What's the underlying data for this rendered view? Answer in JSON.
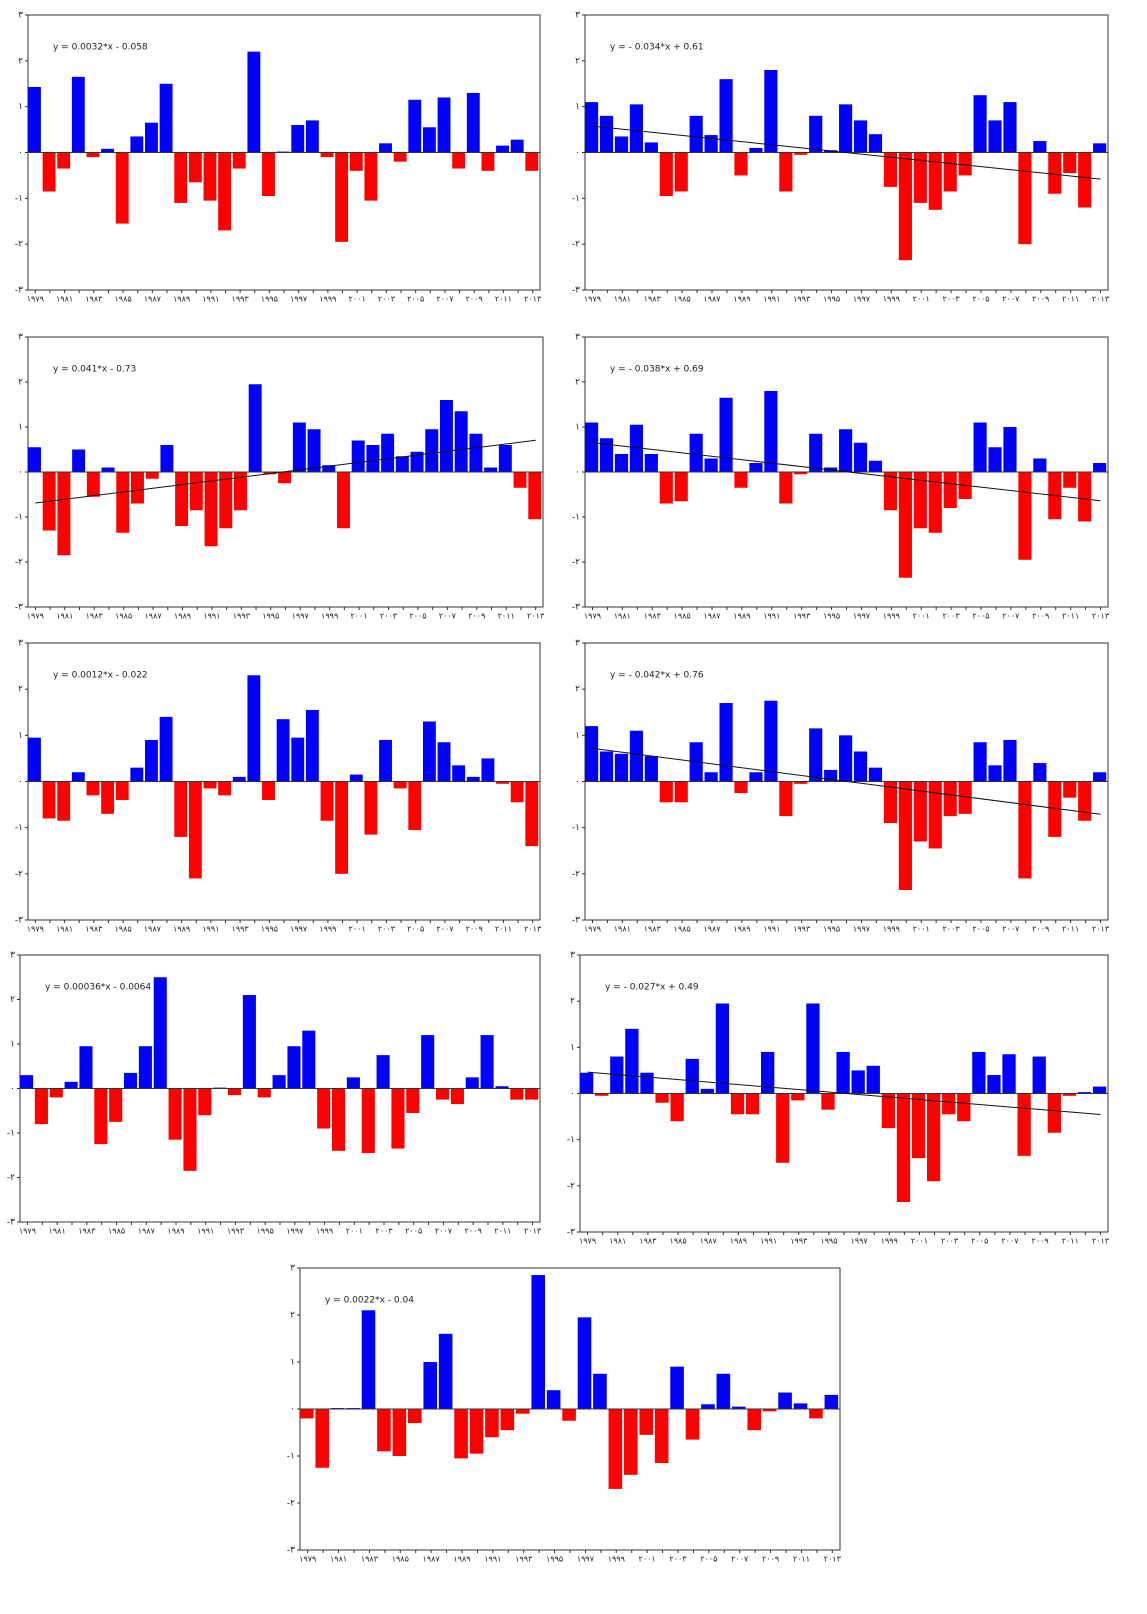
{
  "chart_data": [
    {
      "type": "bar",
      "equation": "y = 0.0032*x - 0.058",
      "trend": {
        "slope": 0.0032,
        "intercept": -0.058,
        "visible": false
      },
      "positive_color": "#0000ff",
      "negative_color": "#ff0000",
      "categories": [
        "۱۹۷۹",
        null,
        "۱۹۸۱",
        null,
        "۱۹۸۳",
        null,
        "۱۹۸۵",
        null,
        "۱۹۸۷",
        null,
        "۱۹۸۹",
        null,
        "۱۹۹۱",
        null,
        "۱۹۹۳",
        null,
        "۱۹۹۵",
        null,
        "۱۹۹۷",
        null,
        "۱۹۹۹",
        null,
        "۲۰۰۱",
        null,
        "۲۰۰۳",
        null,
        "۲۰۰۵",
        null,
        "۲۰۰۷",
        null,
        "۲۰۰۹",
        null,
        "۲۰۱۱",
        null,
        "۲۰۱۳"
      ],
      "values": [
        1.43,
        -0.85,
        -0.35,
        1.65,
        -0.1,
        0.08,
        -1.55,
        0.35,
        0.65,
        1.5,
        -1.1,
        -0.65,
        -1.05,
        -1.7,
        -0.35,
        2.2,
        -0.95,
        0.02,
        0.6,
        0.7,
        -0.1,
        -1.95,
        -0.4,
        -1.05,
        0.2,
        -0.2,
        1.15,
        0.55,
        1.2,
        -0.35,
        1.3,
        -0.4,
        0.15,
        0.28,
        -0.4
      ],
      "ylim": [
        -3,
        3
      ],
      "yticks": [
        {
          "value": -3,
          "label": "-۳"
        },
        {
          "value": -2,
          "label": "-۲"
        },
        {
          "value": -1,
          "label": "-۱"
        },
        {
          "value": 0,
          "label": "۰"
        },
        {
          "value": 1,
          "label": "۱"
        },
        {
          "value": 2,
          "label": "۲"
        },
        {
          "value": 3,
          "label": "۳"
        }
      ]
    },
    {
      "type": "bar",
      "equation": "y = - 0.034*x + 0.61",
      "trend": {
        "slope": -0.034,
        "intercept": 0.61,
        "visible": true
      },
      "positive_color": "#0000ff",
      "negative_color": "#ff0000",
      "categories": [
        "۱۹۷۹",
        null,
        "۱۹۸۱",
        null,
        "۱۹۸۳",
        null,
        "۱۹۸۵",
        null,
        "۱۹۸۷",
        null,
        "۱۹۸۹",
        null,
        "۱۹۹۱",
        null,
        "۱۹۹۳",
        null,
        "۱۹۹۵",
        null,
        "۱۹۹۷",
        null,
        "۱۹۹۹",
        null,
        "۲۰۰۱",
        null,
        "۲۰۰۳",
        null,
        "۲۰۰۵",
        null,
        "۲۰۰۷",
        null,
        "۲۰۰۹",
        null,
        "۲۰۱۱",
        null,
        "۲۰۱۳"
      ],
      "values": [
        1.1,
        0.8,
        0.35,
        1.05,
        0.22,
        -0.95,
        -0.85,
        0.8,
        0.38,
        1.6,
        -0.5,
        0.1,
        1.8,
        -0.85,
        -0.05,
        0.8,
        0.05,
        1.05,
        0.7,
        0.4,
        -0.75,
        -2.35,
        -1.1,
        -1.25,
        -0.85,
        -0.5,
        1.25,
        0.7,
        1.1,
        -2.0,
        0.25,
        -0.9,
        -0.45,
        -1.2,
        0.2
      ],
      "ylim": [
        -3,
        3
      ],
      "yticks": [
        {
          "value": -3,
          "label": "-۳"
        },
        {
          "value": -2,
          "label": "-۲"
        },
        {
          "value": -1,
          "label": "-۱"
        },
        {
          "value": 0,
          "label": "۰"
        },
        {
          "value": 1,
          "label": "۱"
        },
        {
          "value": 2,
          "label": "۲"
        },
        {
          "value": 3,
          "label": "۳"
        }
      ]
    },
    {
      "type": "bar",
      "equation": "y = 0.041*x - 0.73",
      "trend": {
        "slope": 0.041,
        "intercept": -0.73,
        "visible": true
      },
      "positive_color": "#0000ff",
      "negative_color": "#ff0000",
      "categories": [
        "۱۹۷۹",
        null,
        "۱۹۸۱",
        null,
        "۱۹۸۳",
        null,
        "۱۹۸۵",
        null,
        "۱۹۸۷",
        null,
        "۱۹۸۹",
        null,
        "۱۹۹۱",
        null,
        "۱۹۹۳",
        null,
        "۱۹۹۵",
        null,
        "۱۹۹۷",
        null,
        "۱۹۹۹",
        null,
        "۲۰۰۱",
        null,
        "۲۰۰۳",
        null,
        "۲۰۰۵",
        null,
        "۲۰۰۷",
        null,
        "۲۰۰۹",
        null,
        "۲۰۱۱",
        null,
        "۲۰۱۳"
      ],
      "values": [
        0.55,
        -1.3,
        -1.85,
        0.5,
        -0.55,
        0.1,
        -1.35,
        -0.7,
        -0.15,
        0.6,
        -1.2,
        -0.85,
        -1.65,
        -1.25,
        -0.85,
        1.95,
        -0.05,
        -0.25,
        1.1,
        0.95,
        0.15,
        -1.25,
        0.7,
        0.6,
        0.85,
        0.35,
        0.45,
        0.95,
        1.6,
        1.35,
        0.85,
        0.1,
        0.6,
        -0.35,
        -1.05
      ],
      "ylim": [
        -3,
        3
      ],
      "yticks": [
        {
          "value": -3,
          "label": "-۳"
        },
        {
          "value": -2,
          "label": "-۲"
        },
        {
          "value": -1,
          "label": "-۱"
        },
        {
          "value": 0,
          "label": "۰"
        },
        {
          "value": 1,
          "label": "۱"
        },
        {
          "value": 2,
          "label": "۲"
        },
        {
          "value": 3,
          "label": "۳"
        }
      ]
    },
    {
      "type": "bar",
      "equation": "y = - 0.038*x + 0.69",
      "trend": {
        "slope": -0.038,
        "intercept": 0.69,
        "visible": true
      },
      "positive_color": "#0000ff",
      "negative_color": "#ff0000",
      "categories": [
        "۱۹۷۹",
        null,
        "۱۹۸۱",
        null,
        "۱۹۸۳",
        null,
        "۱۹۸۵",
        null,
        "۱۹۸۷",
        null,
        "۱۹۸۹",
        null,
        "۱۹۹۱",
        null,
        "۱۹۹۳",
        null,
        "۱۹۹۵",
        null,
        "۱۹۹۷",
        null,
        "۱۹۹۹",
        null,
        "۲۰۰۱",
        null,
        "۲۰۰۳",
        null,
        "۲۰۰۵",
        null,
        "۲۰۰۷",
        null,
        "۲۰۰۹",
        null,
        "۲۰۱۱",
        null,
        "۲۰۱۳"
      ],
      "values": [
        1.1,
        0.75,
        0.4,
        1.05,
        0.4,
        -0.7,
        -0.65,
        0.85,
        0.3,
        1.65,
        -0.35,
        0.2,
        1.8,
        -0.7,
        -0.05,
        0.85,
        0.1,
        0.95,
        0.65,
        0.25,
        -0.85,
        -2.35,
        -1.25,
        -1.35,
        -0.8,
        -0.6,
        1.1,
        0.55,
        1.0,
        -1.95,
        0.3,
        -1.05,
        -0.35,
        -1.1,
        0.2
      ],
      "ylim": [
        -3,
        3
      ],
      "yticks": [
        {
          "value": -3,
          "label": "-۳"
        },
        {
          "value": -2,
          "label": "-۲"
        },
        {
          "value": -1,
          "label": "-۱"
        },
        {
          "value": 0,
          "label": "۰"
        },
        {
          "value": 1,
          "label": "۱"
        },
        {
          "value": 2,
          "label": "۲"
        },
        {
          "value": 3,
          "label": "۳"
        }
      ]
    },
    {
      "type": "bar",
      "equation": "y = 0.0012*x - 0.022",
      "trend": {
        "slope": 0.0012,
        "intercept": -0.022,
        "visible": false
      },
      "positive_color": "#0000ff",
      "negative_color": "#ff0000",
      "categories": [
        "۱۹۷۹",
        null,
        "۱۹۸۱",
        null,
        "۱۹۸۳",
        null,
        "۱۹۸۵",
        null,
        "۱۹۸۷",
        null,
        "۱۹۸۹",
        null,
        "۱۹۹۱",
        null,
        "۱۹۹۳",
        null,
        "۱۹۹۵",
        null,
        "۱۹۹۷",
        null,
        "۱۹۹۹",
        null,
        "۲۰۰۱",
        null,
        "۲۰۰۳",
        null,
        "۲۰۰۵",
        null,
        "۲۰۰۷",
        null,
        "۲۰۰۹",
        null,
        "۲۰۱۱",
        null,
        "۲۰۱۳"
      ],
      "values": [
        0.95,
        -0.8,
        -0.85,
        0.2,
        -0.3,
        -0.7,
        -0.4,
        0.3,
        0.9,
        1.4,
        -1.2,
        -2.1,
        -0.15,
        -0.3,
        0.1,
        2.3,
        -0.4,
        1.35,
        0.95,
        1.55,
        -0.85,
        -2.0,
        0.15,
        -1.15,
        0.9,
        -0.15,
        -1.05,
        1.3,
        0.85,
        0.35,
        0.1,
        0.5,
        -0.05,
        -0.45,
        -1.4
      ],
      "ylim": [
        -3,
        3
      ],
      "yticks": [
        {
          "value": -3,
          "label": "-۳"
        },
        {
          "value": -2,
          "label": "-۲"
        },
        {
          "value": -1,
          "label": "-۱"
        },
        {
          "value": 0,
          "label": "۰"
        },
        {
          "value": 1,
          "label": "۱"
        },
        {
          "value": 2,
          "label": "۲"
        },
        {
          "value": 3,
          "label": "۳"
        }
      ]
    },
    {
      "type": "bar",
      "equation": "y = - 0.042*x + 0.76",
      "trend": {
        "slope": -0.042,
        "intercept": 0.76,
        "visible": true
      },
      "positive_color": "#0000ff",
      "negative_color": "#ff0000",
      "categories": [
        "۱۹۷۹",
        null,
        "۱۹۸۱",
        null,
        "۱۹۸۳",
        null,
        "۱۹۸۵",
        null,
        "۱۹۸۷",
        null,
        "۱۹۸۹",
        null,
        "۱۹۹۱",
        null,
        "۱۹۹۳",
        null,
        "۱۹۹۵",
        null,
        "۱۹۹۷",
        null,
        "۱۹۹۹",
        null,
        "۲۰۰۱",
        null,
        "۲۰۰۳",
        null,
        "۲۰۰۵",
        null,
        "۲۰۰۷",
        null,
        "۲۰۰۹",
        null,
        "۲۰۱۱",
        null,
        "۲۰۱۳"
      ],
      "values": [
        1.2,
        0.65,
        0.6,
        1.1,
        0.55,
        -0.45,
        -0.45,
        0.85,
        0.2,
        1.7,
        -0.25,
        0.2,
        1.75,
        -0.75,
        -0.05,
        1.15,
        0.25,
        1.0,
        0.65,
        0.3,
        -0.9,
        -2.35,
        -1.3,
        -1.45,
        -0.75,
        -0.7,
        0.85,
        0.35,
        0.9,
        -2.1,
        0.4,
        -1.2,
        -0.35,
        -0.85,
        0.2
      ],
      "ylim": [
        -3,
        3
      ],
      "yticks": [
        {
          "value": -3,
          "label": "-۳"
        },
        {
          "value": -2,
          "label": "-۲"
        },
        {
          "value": -1,
          "label": "-۱"
        },
        {
          "value": 0,
          "label": "۰"
        },
        {
          "value": 1,
          "label": "۱"
        },
        {
          "value": 2,
          "label": "۲"
        },
        {
          "value": 3,
          "label": "۳"
        }
      ]
    },
    {
      "type": "bar",
      "equation": "y = 0.00036*x - 0.0064",
      "trend": {
        "slope": 0.00036,
        "intercept": -0.0064,
        "visible": false
      },
      "positive_color": "#0000ff",
      "negative_color": "#ff0000",
      "categories": [
        "۱۹۷۹",
        null,
        "۱۹۸۱",
        null,
        "۱۹۸۳",
        null,
        "۱۹۸۵",
        null,
        "۱۹۸۷",
        null,
        "۱۹۸۹",
        null,
        "۱۹۹۱",
        null,
        "۱۹۹۳",
        null,
        "۱۹۹۵",
        null,
        "۱۹۹۷",
        null,
        "۱۹۹۹",
        null,
        "۲۰۰۱",
        null,
        "۲۰۰۳",
        null,
        "۲۰۰۵",
        null,
        "۲۰۰۷",
        null,
        "۲۰۰۹",
        null,
        "۲۰۱۱",
        null,
        "۲۰۱۳"
      ],
      "values": [
        0.3,
        -0.8,
        -0.2,
        0.15,
        0.95,
        -1.25,
        -0.75,
        0.35,
        0.95,
        2.5,
        -1.15,
        -1.85,
        -0.6,
        0.02,
        -0.15,
        2.1,
        -0.2,
        0.3,
        0.95,
        1.3,
        -0.9,
        -1.4,
        0.25,
        -1.45,
        0.75,
        -1.35,
        -0.55,
        1.2,
        -0.25,
        -0.35,
        0.25,
        1.2,
        0.05,
        -0.25,
        -0.25
      ],
      "ylim": [
        -3,
        3
      ],
      "yticks": [
        {
          "value": -3,
          "label": "-۳"
        },
        {
          "value": -2,
          "label": "-۲"
        },
        {
          "value": -1,
          "label": "-۱"
        },
        {
          "value": 0,
          "label": "۰"
        },
        {
          "value": 1,
          "label": "۱"
        },
        {
          "value": 2,
          "label": "۲"
        },
        {
          "value": 3,
          "label": "۳"
        }
      ]
    },
    {
      "type": "bar",
      "equation": "y = - 0.027*x + 0.49",
      "trend": {
        "slope": -0.027,
        "intercept": 0.49,
        "visible": true
      },
      "positive_color": "#0000ff",
      "negative_color": "#ff0000",
      "categories": [
        "۱۹۷۹",
        null,
        "۱۹۸۱",
        null,
        "۱۹۸۳",
        null,
        "۱۹۸۵",
        null,
        "۱۹۸۷",
        null,
        "۱۹۸۹",
        null,
        "۱۹۹۱",
        null,
        "۱۹۹۳",
        null,
        "۱۹۹۵",
        null,
        "۱۹۹۷",
        null,
        "۱۹۹۹",
        null,
        "۲۰۰۱",
        null,
        "۲۰۰۳",
        null,
        "۲۰۰۵",
        null,
        "۲۰۰۷",
        null,
        "۲۰۰۹",
        null,
        "۲۰۱۱",
        null,
        "۲۰۱۳"
      ],
      "values": [
        0.45,
        -0.05,
        0.8,
        1.4,
        0.45,
        -0.2,
        -0.6,
        0.75,
        0.1,
        1.95,
        -0.45,
        -0.45,
        0.9,
        -1.5,
        -0.15,
        1.95,
        -0.35,
        0.9,
        0.5,
        0.6,
        -0.75,
        -2.35,
        -1.4,
        -1.9,
        -0.45,
        -0.6,
        0.9,
        0.4,
        0.85,
        -1.35,
        0.8,
        -0.85,
        -0.05,
        0.03,
        0.15
      ],
      "ylim": [
        -3,
        3
      ],
      "yticks": [
        {
          "value": -3,
          "label": "-۳"
        },
        {
          "value": -2,
          "label": "-۲"
        },
        {
          "value": -1,
          "label": "-۱"
        },
        {
          "value": 0,
          "label": "۰"
        },
        {
          "value": 1,
          "label": "۱"
        },
        {
          "value": 2,
          "label": "۲"
        },
        {
          "value": 3,
          "label": "۳"
        }
      ]
    },
    {
      "type": "bar",
      "equation": "y = 0.0022*x - 0.04",
      "trend": {
        "slope": 0.0022,
        "intercept": -0.04,
        "visible": false
      },
      "positive_color": "#0000ff",
      "negative_color": "#ff0000",
      "categories": [
        "۱۹۷۹",
        null,
        "۱۹۸۱",
        null,
        "۱۹۸۳",
        null,
        "۱۹۸۵",
        null,
        "۱۹۸۷",
        null,
        "۱۹۸۹",
        null,
        "۱۹۹۱",
        null,
        "۱۹۹۳",
        null,
        "۱۹۹۵",
        null,
        "۱۹۹۷",
        null,
        "۱۹۹۹",
        null,
        "۲۰۰۱",
        null,
        "۲۰۰۳",
        null,
        "۲۰۰۵",
        null,
        "۲۰۰۷",
        null,
        "۲۰۰۹",
        null,
        "۲۰۱۱",
        null,
        "۲۰۱۳"
      ],
      "values": [
        -0.2,
        -1.25,
        0.02,
        0.02,
        2.1,
        -0.9,
        -1.0,
        -0.3,
        1.0,
        1.6,
        -1.05,
        -0.95,
        -0.6,
        -0.45,
        -0.1,
        2.85,
        0.4,
        -0.25,
        1.95,
        0.75,
        -1.7,
        -1.4,
        -0.55,
        -1.15,
        0.9,
        -0.65,
        0.1,
        0.75,
        0.05,
        -0.45,
        -0.05,
        0.35,
        0.12,
        -0.2,
        0.3
      ],
      "ylim": [
        -3,
        3
      ],
      "yticks": [
        {
          "value": -3,
          "label": "-۳"
        },
        {
          "value": -2,
          "label": "-۲"
        },
        {
          "value": -1,
          "label": "-۱"
        },
        {
          "value": 0,
          "label": "۰"
        },
        {
          "value": 1,
          "label": "۱"
        },
        {
          "value": 2,
          "label": "۲"
        },
        {
          "value": 3,
          "label": "۳"
        }
      ]
    }
  ]
}
